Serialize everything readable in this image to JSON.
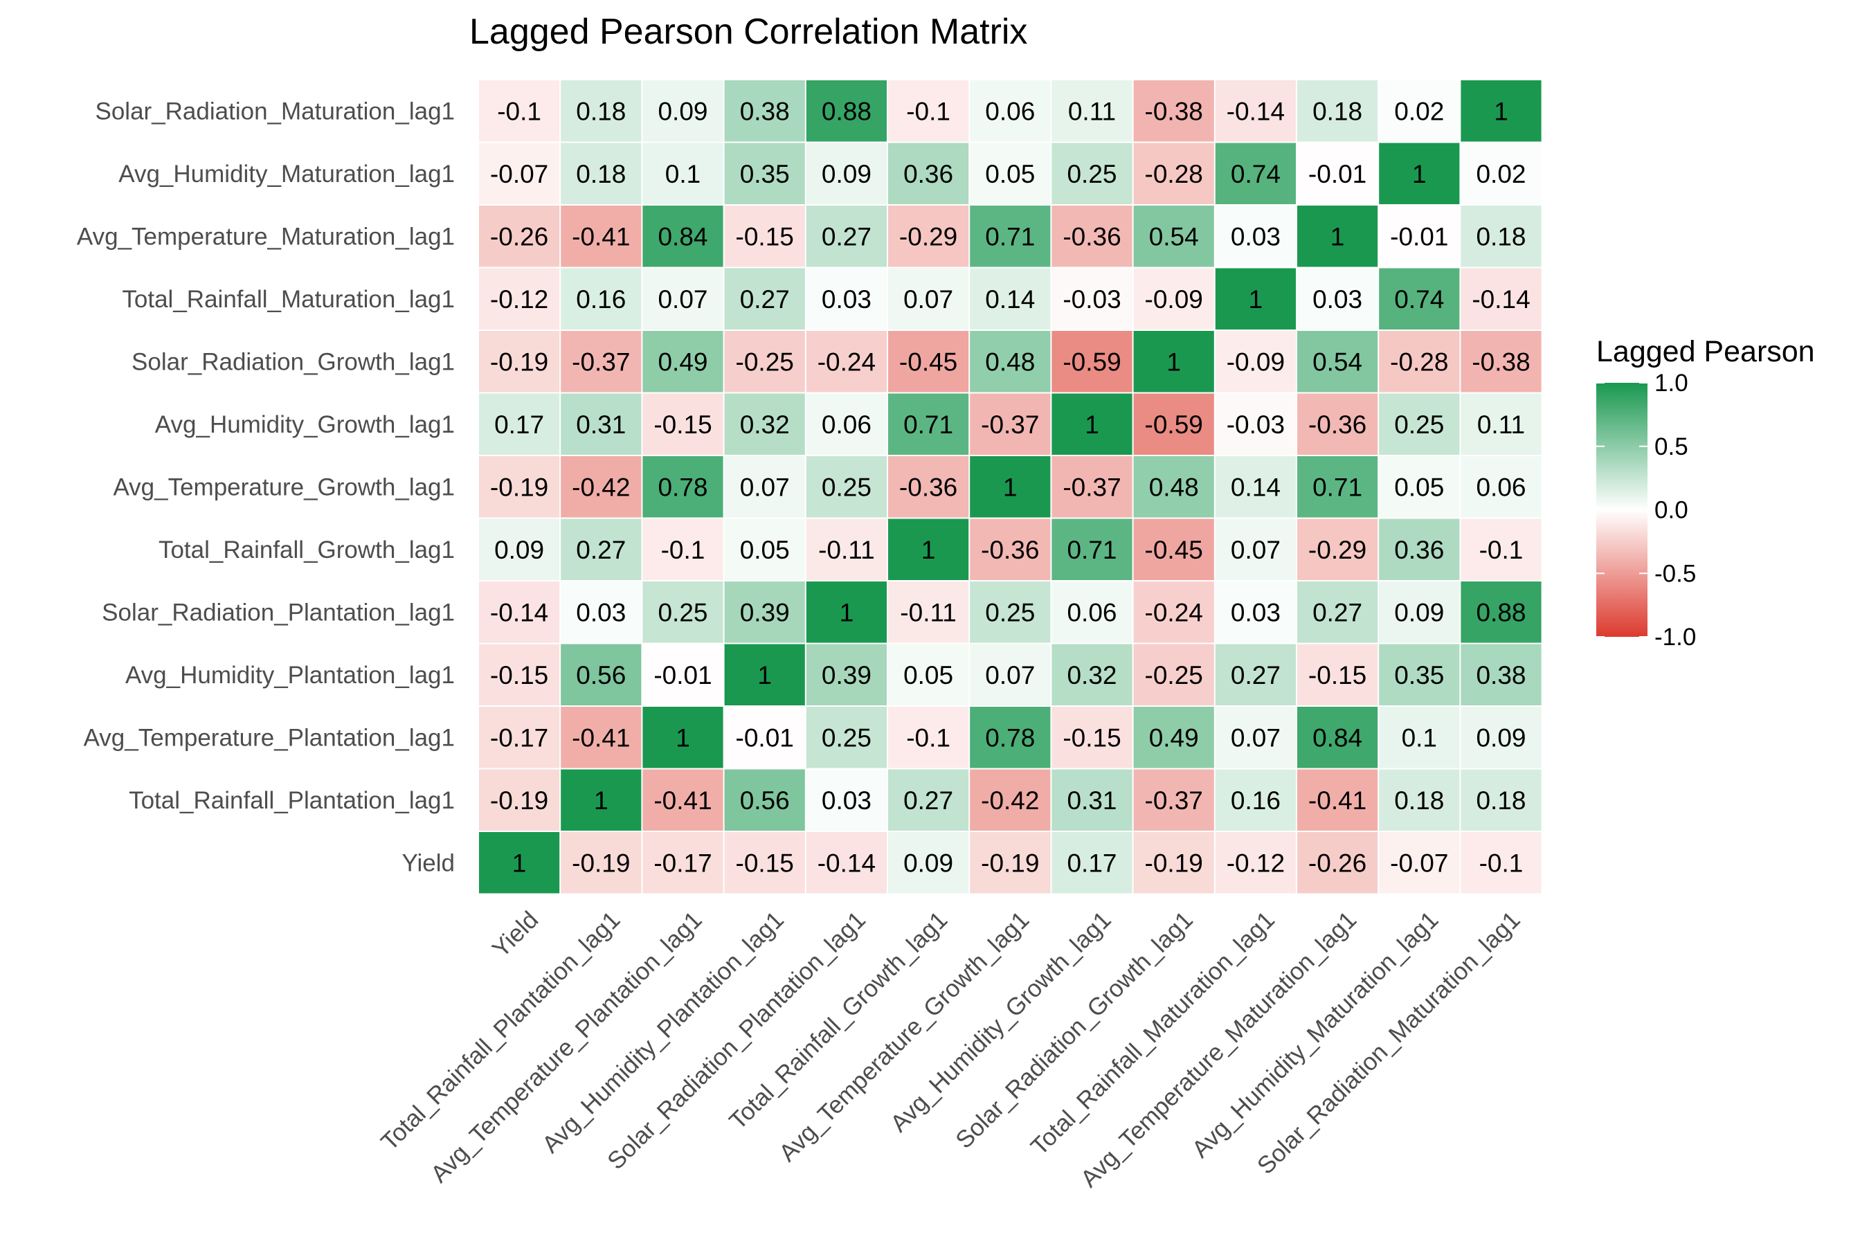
{
  "chart_data": {
    "type": "heatmap",
    "title": "Lagged Pearson Correlation Matrix",
    "variables": [
      "Yield",
      "Total_Rainfall_Plantation_lag1",
      "Avg_Temperature_Plantation_lag1",
      "Avg_Humidity_Plantation_lag1",
      "Solar_Radiation_Plantation_lag1",
      "Total_Rainfall_Growth_lag1",
      "Avg_Temperature_Growth_lag1",
      "Avg_Humidity_Growth_lag1",
      "Solar_Radiation_Growth_lag1",
      "Total_Rainfall_Maturation_lag1",
      "Avg_Temperature_Maturation_lag1",
      "Avg_Humidity_Maturation_lag1",
      "Solar_Radiation_Maturation_lag1"
    ],
    "matrix": [
      [
        1,
        -0.19,
        -0.17,
        -0.15,
        -0.14,
        0.09,
        -0.19,
        0.17,
        -0.19,
        -0.12,
        -0.26,
        -0.07,
        -0.1
      ],
      [
        -0.19,
        1,
        -0.41,
        0.56,
        0.03,
        0.27,
        -0.42,
        0.31,
        -0.37,
        0.16,
        -0.41,
        0.18,
        0.18
      ],
      [
        -0.17,
        -0.41,
        1,
        -0.01,
        0.25,
        -0.1,
        0.78,
        -0.15,
        0.49,
        0.07,
        0.84,
        0.1,
        0.09
      ],
      [
        -0.15,
        0.56,
        -0.01,
        1,
        0.39,
        0.05,
        0.07,
        0.32,
        -0.25,
        0.27,
        -0.15,
        0.35,
        0.38
      ],
      [
        -0.14,
        0.03,
        0.25,
        0.39,
        1,
        -0.11,
        0.25,
        0.06,
        -0.24,
        0.03,
        0.27,
        0.09,
        0.88
      ],
      [
        0.09,
        0.27,
        -0.1,
        0.05,
        -0.11,
        1,
        -0.36,
        0.71,
        -0.45,
        0.07,
        -0.29,
        0.36,
        -0.1
      ],
      [
        -0.19,
        -0.42,
        0.78,
        0.07,
        0.25,
        -0.36,
        1,
        -0.37,
        0.48,
        0.14,
        0.71,
        0.05,
        0.06
      ],
      [
        0.17,
        0.31,
        -0.15,
        0.32,
        0.06,
        0.71,
        -0.37,
        1,
        -0.59,
        -0.03,
        -0.36,
        0.25,
        0.11
      ],
      [
        -0.19,
        -0.37,
        0.49,
        -0.25,
        -0.24,
        -0.45,
        0.48,
        -0.59,
        1,
        -0.09,
        0.54,
        -0.28,
        -0.38
      ],
      [
        -0.12,
        0.16,
        0.07,
        0.27,
        0.03,
        0.07,
        0.14,
        -0.03,
        -0.09,
        1,
        0.03,
        0.74,
        -0.14
      ],
      [
        -0.26,
        -0.41,
        0.84,
        -0.15,
        0.27,
        -0.29,
        0.71,
        -0.36,
        0.54,
        0.03,
        1,
        -0.01,
        0.18
      ],
      [
        -0.07,
        0.18,
        0.1,
        0.35,
        0.09,
        0.36,
        0.05,
        0.25,
        -0.28,
        0.74,
        -0.01,
        1,
        0.02
      ],
      [
        -0.1,
        0.18,
        0.09,
        0.38,
        0.88,
        -0.1,
        0.06,
        0.11,
        -0.38,
        -0.14,
        0.18,
        0.02,
        1
      ]
    ],
    "color_scale": {
      "low": "#dc3a2e",
      "mid": "#ffffff",
      "high": "#1a9850",
      "limits": [
        -1,
        1
      ]
    },
    "legend": {
      "title": "Lagged Pearson",
      "ticks": [
        "1.0",
        "0.5",
        "0.0",
        "-0.5",
        "-1.0"
      ],
      "position": "right"
    }
  }
}
